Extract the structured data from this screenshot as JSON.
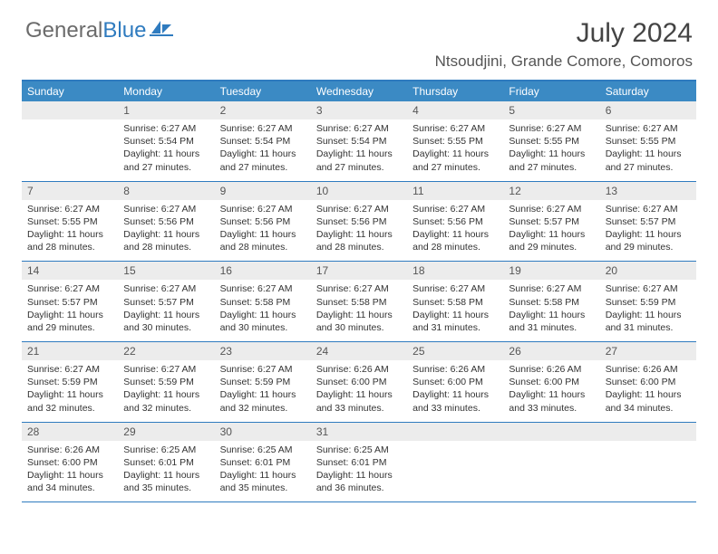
{
  "brand": {
    "text1": "General",
    "text2": "Blue"
  },
  "title": "July 2024",
  "location": "Ntsoudjini, Grande Comore, Comoros",
  "colors": {
    "header_bg": "#3b8ac4",
    "border": "#2f7bbf",
    "daynum_bg": "#ececec",
    "text": "#333333",
    "title": "#444444"
  },
  "day_names": [
    "Sunday",
    "Monday",
    "Tuesday",
    "Wednesday",
    "Thursday",
    "Friday",
    "Saturday"
  ],
  "weeks": [
    [
      {
        "num": "",
        "lines": []
      },
      {
        "num": "1",
        "lines": [
          "Sunrise: 6:27 AM",
          "Sunset: 5:54 PM",
          "Daylight: 11 hours and 27 minutes."
        ]
      },
      {
        "num": "2",
        "lines": [
          "Sunrise: 6:27 AM",
          "Sunset: 5:54 PM",
          "Daylight: 11 hours and 27 minutes."
        ]
      },
      {
        "num": "3",
        "lines": [
          "Sunrise: 6:27 AM",
          "Sunset: 5:54 PM",
          "Daylight: 11 hours and 27 minutes."
        ]
      },
      {
        "num": "4",
        "lines": [
          "Sunrise: 6:27 AM",
          "Sunset: 5:55 PM",
          "Daylight: 11 hours and 27 minutes."
        ]
      },
      {
        "num": "5",
        "lines": [
          "Sunrise: 6:27 AM",
          "Sunset: 5:55 PM",
          "Daylight: 11 hours and 27 minutes."
        ]
      },
      {
        "num": "6",
        "lines": [
          "Sunrise: 6:27 AM",
          "Sunset: 5:55 PM",
          "Daylight: 11 hours and 27 minutes."
        ]
      }
    ],
    [
      {
        "num": "7",
        "lines": [
          "Sunrise: 6:27 AM",
          "Sunset: 5:55 PM",
          "Daylight: 11 hours and 28 minutes."
        ]
      },
      {
        "num": "8",
        "lines": [
          "Sunrise: 6:27 AM",
          "Sunset: 5:56 PM",
          "Daylight: 11 hours and 28 minutes."
        ]
      },
      {
        "num": "9",
        "lines": [
          "Sunrise: 6:27 AM",
          "Sunset: 5:56 PM",
          "Daylight: 11 hours and 28 minutes."
        ]
      },
      {
        "num": "10",
        "lines": [
          "Sunrise: 6:27 AM",
          "Sunset: 5:56 PM",
          "Daylight: 11 hours and 28 minutes."
        ]
      },
      {
        "num": "11",
        "lines": [
          "Sunrise: 6:27 AM",
          "Sunset: 5:56 PM",
          "Daylight: 11 hours and 28 minutes."
        ]
      },
      {
        "num": "12",
        "lines": [
          "Sunrise: 6:27 AM",
          "Sunset: 5:57 PM",
          "Daylight: 11 hours and 29 minutes."
        ]
      },
      {
        "num": "13",
        "lines": [
          "Sunrise: 6:27 AM",
          "Sunset: 5:57 PM",
          "Daylight: 11 hours and 29 minutes."
        ]
      }
    ],
    [
      {
        "num": "14",
        "lines": [
          "Sunrise: 6:27 AM",
          "Sunset: 5:57 PM",
          "Daylight: 11 hours and 29 minutes."
        ]
      },
      {
        "num": "15",
        "lines": [
          "Sunrise: 6:27 AM",
          "Sunset: 5:57 PM",
          "Daylight: 11 hours and 30 minutes."
        ]
      },
      {
        "num": "16",
        "lines": [
          "Sunrise: 6:27 AM",
          "Sunset: 5:58 PM",
          "Daylight: 11 hours and 30 minutes."
        ]
      },
      {
        "num": "17",
        "lines": [
          "Sunrise: 6:27 AM",
          "Sunset: 5:58 PM",
          "Daylight: 11 hours and 30 minutes."
        ]
      },
      {
        "num": "18",
        "lines": [
          "Sunrise: 6:27 AM",
          "Sunset: 5:58 PM",
          "Daylight: 11 hours and 31 minutes."
        ]
      },
      {
        "num": "19",
        "lines": [
          "Sunrise: 6:27 AM",
          "Sunset: 5:58 PM",
          "Daylight: 11 hours and 31 minutes."
        ]
      },
      {
        "num": "20",
        "lines": [
          "Sunrise: 6:27 AM",
          "Sunset: 5:59 PM",
          "Daylight: 11 hours and 31 minutes."
        ]
      }
    ],
    [
      {
        "num": "21",
        "lines": [
          "Sunrise: 6:27 AM",
          "Sunset: 5:59 PM",
          "Daylight: 11 hours and 32 minutes."
        ]
      },
      {
        "num": "22",
        "lines": [
          "Sunrise: 6:27 AM",
          "Sunset: 5:59 PM",
          "Daylight: 11 hours and 32 minutes."
        ]
      },
      {
        "num": "23",
        "lines": [
          "Sunrise: 6:27 AM",
          "Sunset: 5:59 PM",
          "Daylight: 11 hours and 32 minutes."
        ]
      },
      {
        "num": "24",
        "lines": [
          "Sunrise: 6:26 AM",
          "Sunset: 6:00 PM",
          "Daylight: 11 hours and 33 minutes."
        ]
      },
      {
        "num": "25",
        "lines": [
          "Sunrise: 6:26 AM",
          "Sunset: 6:00 PM",
          "Daylight: 11 hours and 33 minutes."
        ]
      },
      {
        "num": "26",
        "lines": [
          "Sunrise: 6:26 AM",
          "Sunset: 6:00 PM",
          "Daylight: 11 hours and 33 minutes."
        ]
      },
      {
        "num": "27",
        "lines": [
          "Sunrise: 6:26 AM",
          "Sunset: 6:00 PM",
          "Daylight: 11 hours and 34 minutes."
        ]
      }
    ],
    [
      {
        "num": "28",
        "lines": [
          "Sunrise: 6:26 AM",
          "Sunset: 6:00 PM",
          "Daylight: 11 hours and 34 minutes."
        ]
      },
      {
        "num": "29",
        "lines": [
          "Sunrise: 6:25 AM",
          "Sunset: 6:01 PM",
          "Daylight: 11 hours and 35 minutes."
        ]
      },
      {
        "num": "30",
        "lines": [
          "Sunrise: 6:25 AM",
          "Sunset: 6:01 PM",
          "Daylight: 11 hours and 35 minutes."
        ]
      },
      {
        "num": "31",
        "lines": [
          "Sunrise: 6:25 AM",
          "Sunset: 6:01 PM",
          "Daylight: 11 hours and 36 minutes."
        ]
      },
      {
        "num": "",
        "lines": []
      },
      {
        "num": "",
        "lines": []
      },
      {
        "num": "",
        "lines": []
      }
    ]
  ]
}
